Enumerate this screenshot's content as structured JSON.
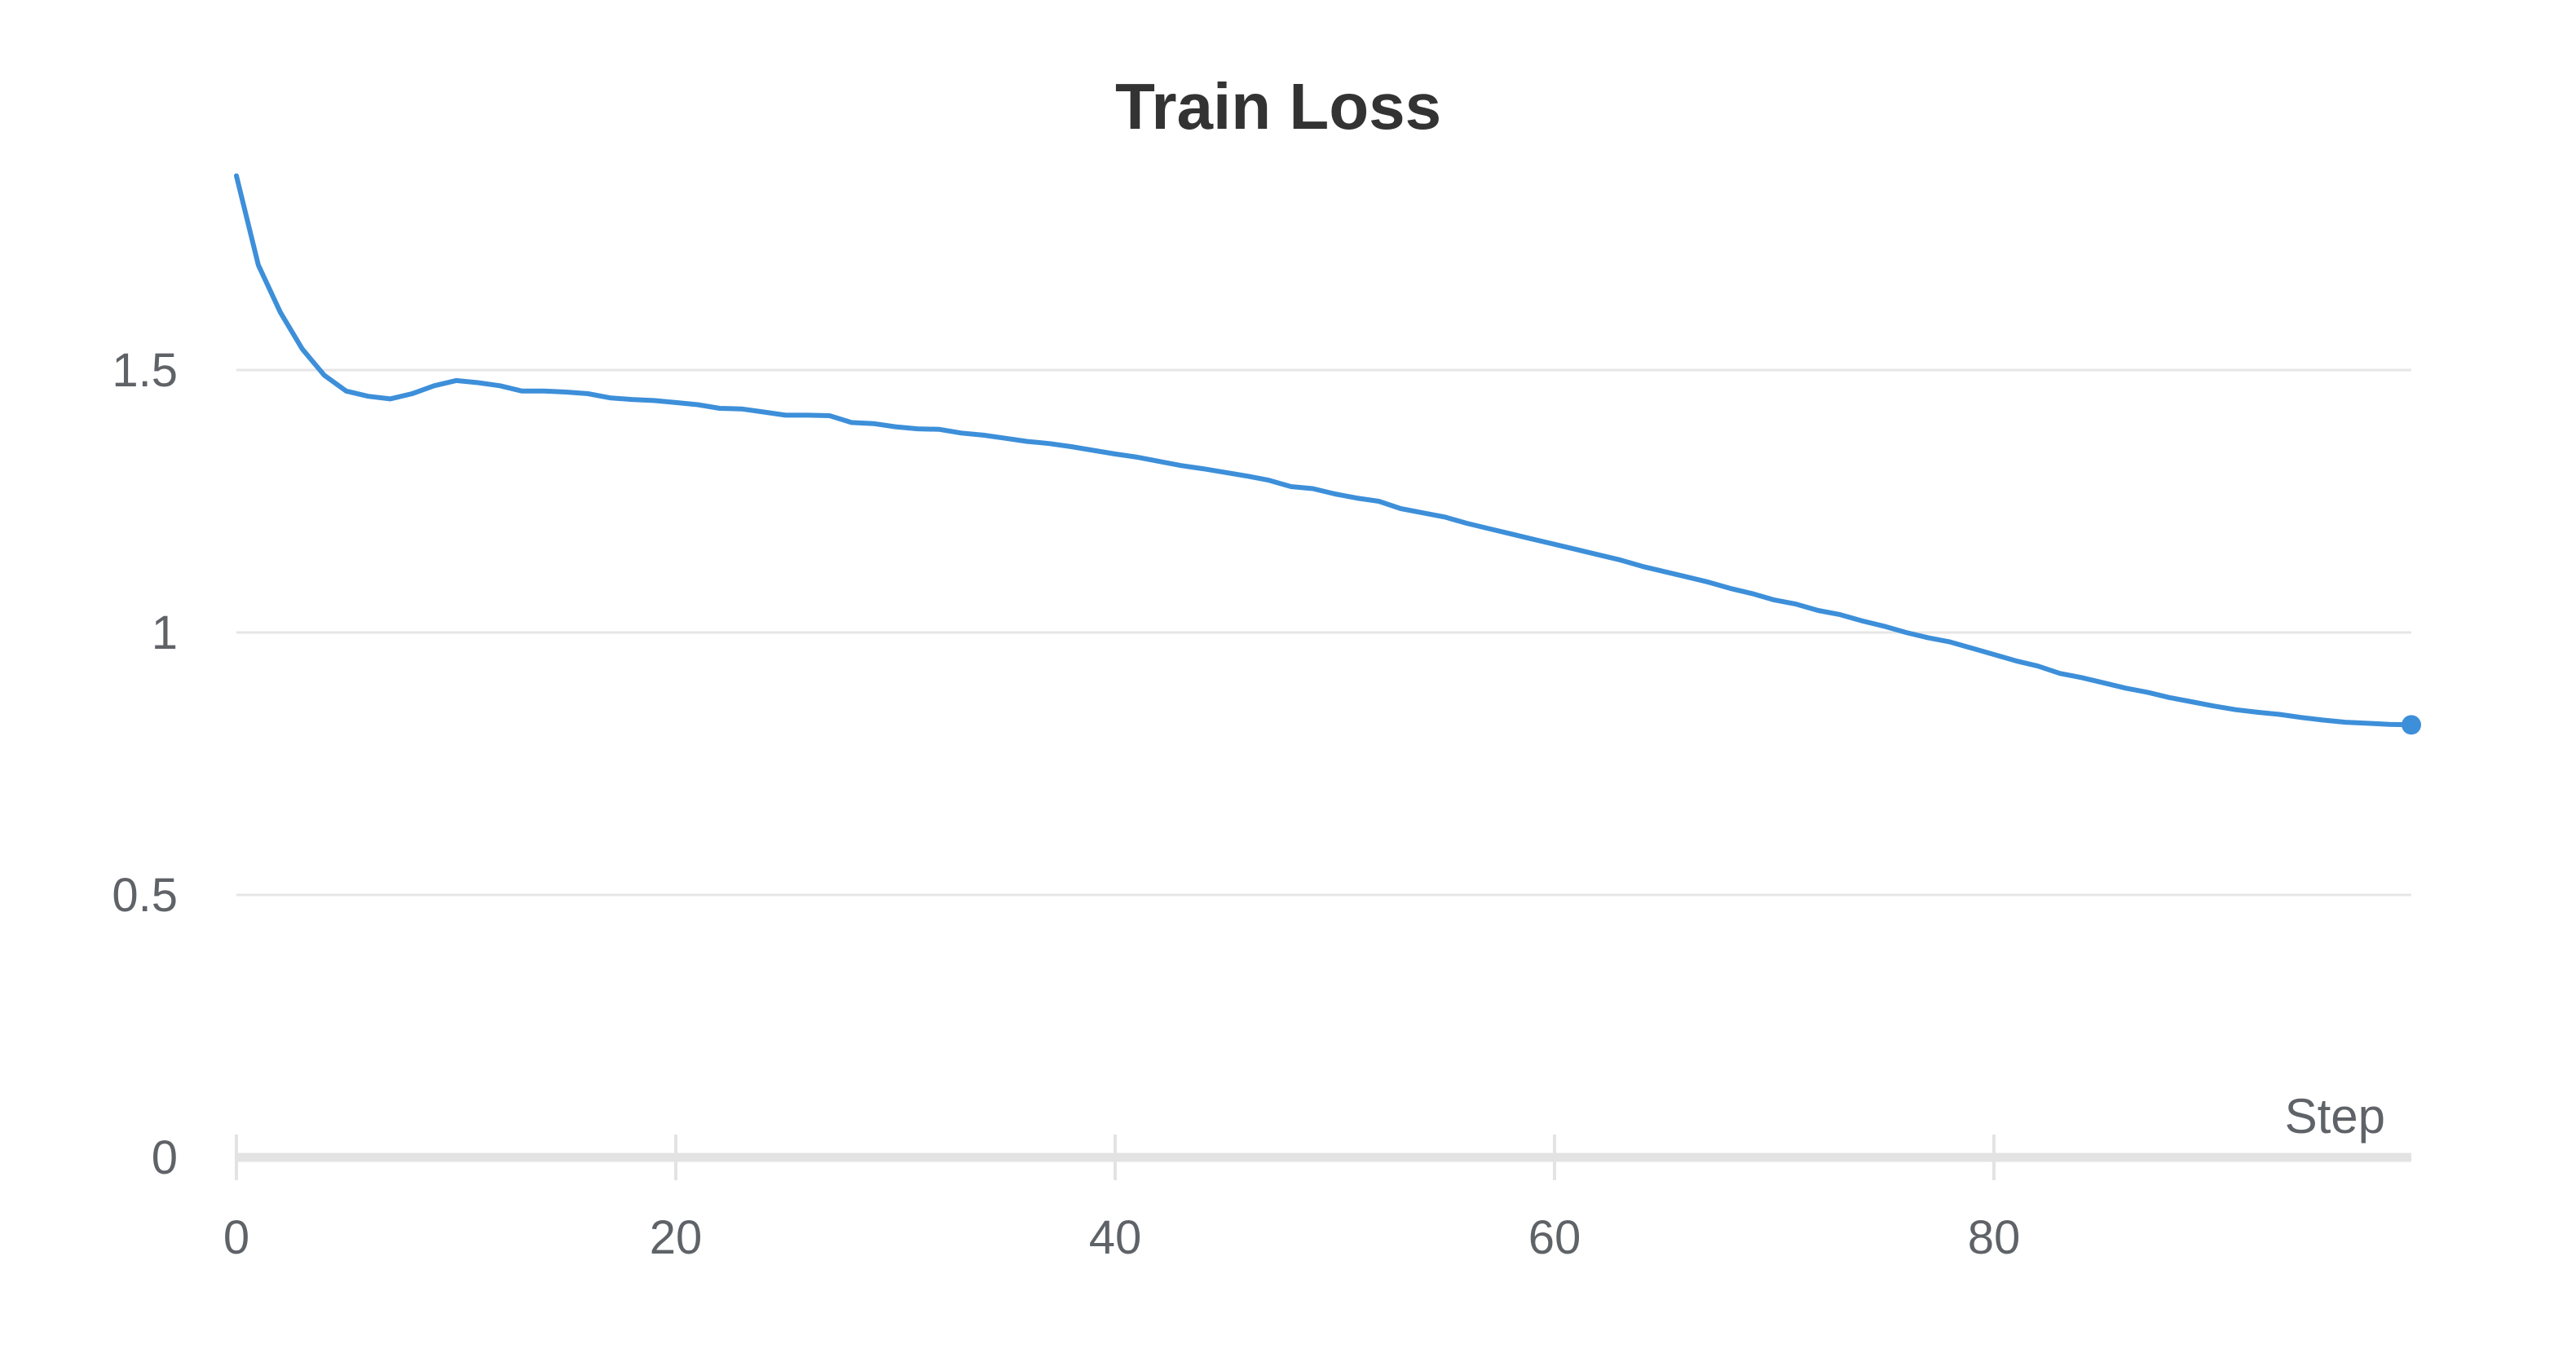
{
  "chart_data": {
    "type": "line",
    "title": "Train Loss",
    "xlabel": "Step",
    "ylabel": "",
    "xlim": [
      0,
      99
    ],
    "ylim": [
      0,
      2
    ],
    "x_ticks": [
      0,
      20,
      40,
      60,
      80
    ],
    "y_ticks": [
      0,
      0.5,
      1,
      1.5
    ],
    "x_tick_labels": [
      "0",
      "20",
      "40",
      "60",
      "80"
    ],
    "y_tick_labels": [
      "0",
      "0.5",
      "1",
      "1.5"
    ],
    "grid": true,
    "legend": "none",
    "line_color": "#3d8fd9",
    "series": [
      {
        "x": [
          0,
          1,
          2,
          3,
          4,
          5,
          6,
          7,
          8,
          9,
          10,
          11,
          12,
          13,
          14,
          15,
          16,
          17,
          18,
          19,
          20,
          21,
          22,
          23,
          24,
          25,
          26,
          27,
          28,
          29,
          30,
          31,
          32,
          33,
          34,
          35,
          36,
          37,
          38,
          39,
          40,
          41,
          42,
          43,
          44,
          45,
          46,
          47,
          48,
          49,
          50,
          51,
          52,
          53,
          54,
          55,
          56,
          57,
          58,
          59,
          60,
          61,
          62,
          63,
          64,
          65,
          66,
          67,
          68,
          69,
          70,
          71,
          72,
          73,
          74,
          75,
          76,
          77,
          78,
          79,
          80,
          81,
          82,
          83,
          84,
          85,
          86,
          87,
          88,
          89,
          90,
          91,
          92,
          93,
          94,
          95,
          96,
          97,
          98,
          99
        ],
        "values": [
          1.87,
          1.7,
          1.61,
          1.54,
          1.49,
          1.46,
          1.45,
          1.445,
          1.455,
          1.47,
          1.48,
          1.476,
          1.47,
          1.46,
          1.46,
          1.458,
          1.455,
          1.447,
          1.444,
          1.442,
          1.438,
          1.434,
          1.427,
          1.426,
          1.42,
          1.414,
          1.414,
          1.413,
          1.4,
          1.398,
          1.392,
          1.388,
          1.387,
          1.38,
          1.376,
          1.37,
          1.364,
          1.36,
          1.354,
          1.347,
          1.34,
          1.334,
          1.326,
          1.318,
          1.312,
          1.305,
          1.298,
          1.29,
          1.278,
          1.274,
          1.264,
          1.256,
          1.25,
          1.236,
          1.228,
          1.22,
          1.208,
          1.198,
          1.188,
          1.178,
          1.168,
          1.158,
          1.148,
          1.138,
          1.126,
          1.116,
          1.106,
          1.096,
          1.084,
          1.074,
          1.062,
          1.054,
          1.042,
          1.034,
          1.022,
          1.012,
          1.0,
          0.99,
          0.982,
          0.97,
          0.958,
          0.946,
          0.936,
          0.922,
          0.914,
          0.904,
          0.894,
          0.886,
          0.876,
          0.868,
          0.86,
          0.853,
          0.848,
          0.844,
          0.838,
          0.833,
          0.829,
          0.827,
          0.825,
          0.824
        ]
      }
    ]
  }
}
